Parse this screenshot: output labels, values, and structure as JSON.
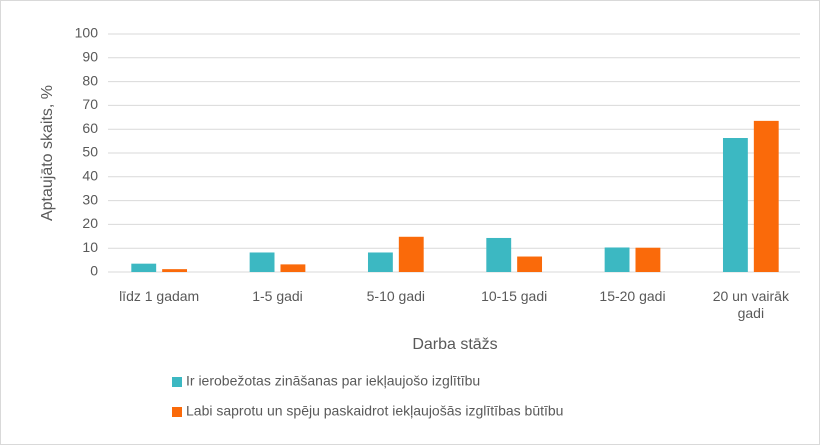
{
  "chart_data": {
    "type": "bar",
    "x_label": "Darba stāžs",
    "y_label": "Aptaujāto skaits, %",
    "categories": [
      "līdz 1 gadam",
      "1-5 gadi",
      "5-10 gadi",
      "10-15 gadi",
      "15-20 gadi",
      "20 un vairāk gadi"
    ],
    "series": [
      {
        "name": "Ir ierobežotas zināšanas par iekļaujošo izglītību",
        "color": "#3cb8c2",
        "values": [
          3.5,
          8.2,
          8.2,
          14.3,
          10.3,
          56.3
        ]
      },
      {
        "name": "Labi saprotu un spēju paskaidrot iekļaujošās izglītības būtību",
        "color": "#fa6a0a",
        "values": [
          1.2,
          3.2,
          14.8,
          6.5,
          10.2,
          63.5
        ]
      }
    ],
    "ylim": [
      0,
      100
    ],
    "yticks": [
      0,
      10,
      20,
      30,
      40,
      50,
      60,
      70,
      80,
      90,
      100
    ],
    "grid": true
  }
}
